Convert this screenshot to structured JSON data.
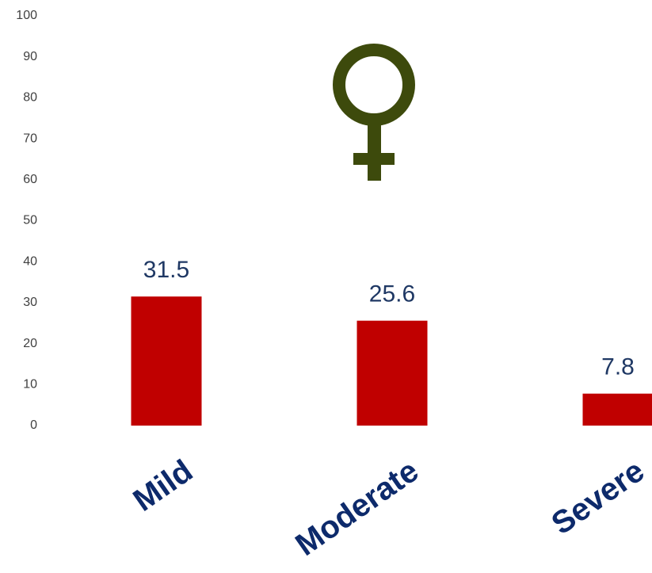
{
  "chart_data": {
    "type": "bar",
    "categories": [
      "Mild",
      "Moderate",
      "Severe"
    ],
    "values": [
      31.5,
      25.6,
      7.8
    ],
    "color": "#c00000",
    "ylim": [
      0,
      100
    ],
    "yticks": [
      0,
      10,
      20,
      30,
      40,
      50,
      60,
      70,
      80,
      90,
      100
    ],
    "grid": false
  }
}
